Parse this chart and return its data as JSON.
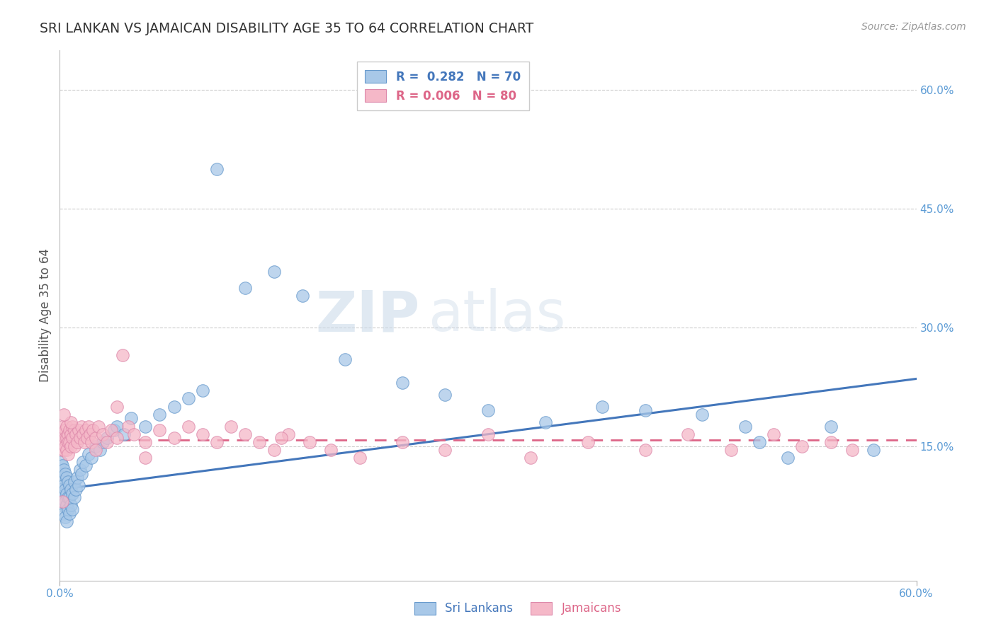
{
  "title": "SRI LANKAN VS JAMAICAN DISABILITY AGE 35 TO 64 CORRELATION CHART",
  "source": "Source: ZipAtlas.com",
  "ylabel": "Disability Age 35 to 64",
  "xlim": [
    0.0,
    0.6
  ],
  "ylim": [
    -0.02,
    0.65
  ],
  "xticks": [
    0.0,
    0.6
  ],
  "xtick_labels": [
    "0.0%",
    "60.0%"
  ],
  "yticks": [
    0.15,
    0.3,
    0.45,
    0.6
  ],
  "ytick_labels": [
    "15.0%",
    "30.0%",
    "45.0%",
    "60.0%"
  ],
  "legend_r1": "R =  0.282",
  "legend_n1": "N = 70",
  "legend_r2": "R = 0.006",
  "legend_n2": "N = 80",
  "sri_lankan_color": "#A8C8E8",
  "jamaican_color": "#F5B8C8",
  "sri_lankan_edge_color": "#6699CC",
  "jamaican_edge_color": "#DD88AA",
  "sri_lankan_line_color": "#4477BB",
  "jamaican_line_color": "#DD6688",
  "watermark_zip": "ZIP",
  "watermark_atlas": "atlas",
  "background_color": "#FFFFFF",
  "title_color": "#333333",
  "axis_label_color": "#555555",
  "tick_color": "#5B9BD5",
  "grid_color": "#CCCCCC",
  "sri_lankans_x": [
    0.001,
    0.001,
    0.001,
    0.002,
    0.002,
    0.002,
    0.002,
    0.003,
    0.003,
    0.003,
    0.003,
    0.004,
    0.004,
    0.004,
    0.004,
    0.005,
    0.005,
    0.005,
    0.005,
    0.006,
    0.006,
    0.006,
    0.007,
    0.007,
    0.007,
    0.008,
    0.008,
    0.009,
    0.009,
    0.01,
    0.01,
    0.011,
    0.012,
    0.013,
    0.014,
    0.015,
    0.016,
    0.018,
    0.02,
    0.022,
    0.025,
    0.028,
    0.03,
    0.033,
    0.038,
    0.04,
    0.045,
    0.05,
    0.06,
    0.07,
    0.08,
    0.09,
    0.1,
    0.11,
    0.13,
    0.15,
    0.17,
    0.2,
    0.24,
    0.27,
    0.3,
    0.34,
    0.38,
    0.41,
    0.45,
    0.48,
    0.49,
    0.51,
    0.54,
    0.57
  ],
  "sri_lankans_y": [
    0.13,
    0.115,
    0.095,
    0.125,
    0.11,
    0.09,
    0.075,
    0.12,
    0.1,
    0.08,
    0.065,
    0.115,
    0.095,
    0.08,
    0.06,
    0.11,
    0.09,
    0.075,
    0.055,
    0.105,
    0.085,
    0.07,
    0.1,
    0.085,
    0.065,
    0.095,
    0.075,
    0.09,
    0.07,
    0.085,
    0.105,
    0.095,
    0.11,
    0.1,
    0.12,
    0.115,
    0.13,
    0.125,
    0.14,
    0.135,
    0.15,
    0.145,
    0.155,
    0.16,
    0.17,
    0.175,
    0.165,
    0.185,
    0.175,
    0.19,
    0.2,
    0.21,
    0.22,
    0.5,
    0.35,
    0.37,
    0.34,
    0.26,
    0.23,
    0.215,
    0.195,
    0.18,
    0.2,
    0.195,
    0.19,
    0.175,
    0.155,
    0.135,
    0.175,
    0.145
  ],
  "jamaicans_x": [
    0.001,
    0.001,
    0.002,
    0.002,
    0.002,
    0.003,
    0.003,
    0.003,
    0.004,
    0.004,
    0.004,
    0.005,
    0.005,
    0.005,
    0.006,
    0.006,
    0.006,
    0.007,
    0.007,
    0.008,
    0.008,
    0.009,
    0.009,
    0.01,
    0.01,
    0.011,
    0.012,
    0.013,
    0.014,
    0.015,
    0.016,
    0.017,
    0.018,
    0.019,
    0.02,
    0.021,
    0.022,
    0.023,
    0.025,
    0.027,
    0.03,
    0.033,
    0.036,
    0.04,
    0.044,
    0.048,
    0.052,
    0.06,
    0.07,
    0.08,
    0.09,
    0.1,
    0.11,
    0.12,
    0.13,
    0.14,
    0.15,
    0.16,
    0.175,
    0.19,
    0.21,
    0.24,
    0.27,
    0.3,
    0.33,
    0.37,
    0.41,
    0.44,
    0.47,
    0.5,
    0.52,
    0.54,
    0.555,
    0.06,
    0.155,
    0.025,
    0.04,
    0.008,
    0.003,
    0.002
  ],
  "jamaicans_y": [
    0.165,
    0.155,
    0.175,
    0.15,
    0.145,
    0.165,
    0.155,
    0.145,
    0.17,
    0.16,
    0.15,
    0.175,
    0.16,
    0.145,
    0.165,
    0.155,
    0.14,
    0.17,
    0.155,
    0.165,
    0.15,
    0.175,
    0.16,
    0.17,
    0.15,
    0.165,
    0.155,
    0.17,
    0.16,
    0.175,
    0.165,
    0.155,
    0.17,
    0.16,
    0.175,
    0.165,
    0.155,
    0.17,
    0.16,
    0.175,
    0.165,
    0.155,
    0.17,
    0.16,
    0.265,
    0.175,
    0.165,
    0.155,
    0.17,
    0.16,
    0.175,
    0.165,
    0.155,
    0.175,
    0.165,
    0.155,
    0.145,
    0.165,
    0.155,
    0.145,
    0.135,
    0.155,
    0.145,
    0.165,
    0.135,
    0.155,
    0.145,
    0.165,
    0.145,
    0.165,
    0.15,
    0.155,
    0.145,
    0.135,
    0.16,
    0.145,
    0.2,
    0.18,
    0.19,
    0.08
  ],
  "sl_trend_x0": 0.0,
  "sl_trend_y0": 0.095,
  "sl_trend_x1": 0.6,
  "sl_trend_y1": 0.235,
  "ja_trend_x0": 0.0,
  "ja_trend_y0": 0.158,
  "ja_trend_x1": 0.6,
  "ja_trend_y1": 0.158
}
